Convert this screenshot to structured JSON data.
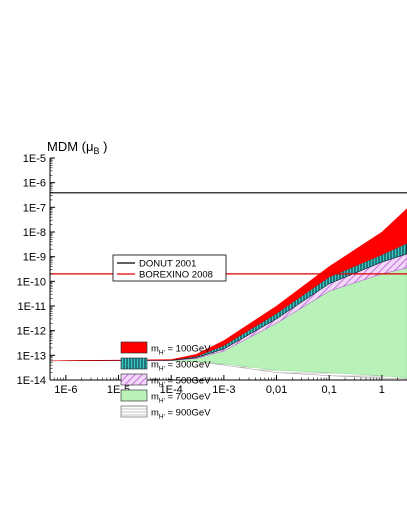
{
  "chart_data": {
    "type": "area",
    "title": "",
    "ylabel": "MDM (μ",
    "ylabel_sub": "B",
    "ylabel_tail": " )",
    "xlabel": "",
    "x_scale": "log",
    "y_scale": "log",
    "xlim": [
      5e-07,
      3
    ],
    "ylim": [
      1e-14,
      1e-05
    ],
    "x_ticks": [
      1e-06,
      1e-05,
      0.0001,
      0.001,
      0.01,
      0.1,
      1
    ],
    "x_tick_labels": [
      "1E-6",
      "1E-5",
      "1E-4",
      "1E-3",
      "0,01",
      "0,1",
      "1"
    ],
    "y_ticks": [
      1e-14,
      1e-13,
      1e-12,
      1e-11,
      1e-10,
      1e-09,
      1e-08,
      1e-07,
      1e-06,
      1e-05
    ],
    "y_tick_labels": [
      "1E-14",
      "1E-13",
      "1E-12",
      "1E-11",
      "1E-10",
      "1E-9",
      "1E-8",
      "1E-7",
      "1E-6",
      "1E-5"
    ],
    "grid": false,
    "reference_lines": [
      {
        "name": "DONUT 2001",
        "y": 3.9e-07,
        "color": "#000000"
      },
      {
        "name": "BOREXINO 2008",
        "y": 2e-10,
        "color": "#e00000"
      }
    ],
    "bands": [
      {
        "name": "900GeV",
        "color": "#ffffff",
        "hatch": "horizontal",
        "stroke": "#9a9a9a",
        "x": [
          5e-07,
          0.0001,
          0.0003,
          0.001,
          0.01,
          0.1,
          1,
          3
        ],
        "lower": [
          6e-14,
          6e-14,
          5.5e-14,
          4e-14,
          2e-14,
          1.5e-14,
          1.2e-14,
          1.1e-14
        ],
        "upper": [
          6e-14,
          6.1e-14,
          7e-14,
          1.3e-13,
          1.3e-12,
          2e-11,
          1e-10,
          1.8e-10
        ]
      },
      {
        "name": "700GeV",
        "color": "#b8f2b8",
        "hatch": "none",
        "stroke": "#7fd37f",
        "x": [
          5e-07,
          0.0001,
          0.0003,
          0.001,
          0.01,
          0.1,
          1,
          3
        ],
        "lower": [
          6e-14,
          6e-14,
          5.6e-14,
          4.5e-14,
          2.5e-14,
          2e-14,
          1.5e-14,
          1.2e-14
        ],
        "upper": [
          6e-14,
          6.2e-14,
          7.5e-14,
          1.5e-13,
          2e-12,
          4e-11,
          2e-10,
          3.5e-10
        ]
      },
      {
        "name": "500GeV",
        "color": "#ffffff",
        "hatch": "diagonal",
        "stroke": "#b04ad0",
        "x": [
          5e-07,
          0.0001,
          0.0003,
          0.001,
          0.01,
          0.1,
          1,
          3
        ],
        "lower": [
          6e-14,
          6.2e-14,
          7.5e-14,
          1.5e-13,
          2e-12,
          4e-11,
          2e-10,
          3.5e-10
        ],
        "upper": [
          6e-14,
          6.3e-14,
          8e-14,
          1.8e-13,
          3e-12,
          8e-11,
          6e-10,
          1.3e-09
        ]
      },
      {
        "name": "300GeV",
        "color": "#39c8c8",
        "hatch": "vertical",
        "stroke": "#000000",
        "x": [
          5e-07,
          0.0001,
          0.0003,
          0.001,
          0.01,
          0.1,
          1,
          3
        ],
        "lower": [
          6e-14,
          6.3e-14,
          8e-14,
          1.8e-13,
          3e-12,
          8e-11,
          6e-10,
          1.3e-09
        ],
        "upper": [
          6e-14,
          6.5e-14,
          9e-14,
          2.5e-13,
          5e-12,
          1.5e-10,
          1.2e-09,
          3.5e-09
        ]
      },
      {
        "name": "100GeV",
        "color": "#ff0000",
        "hatch": "none",
        "stroke": "#ff0000",
        "x": [
          5e-07,
          0.0001,
          0.0003,
          0.001,
          0.01,
          0.1,
          1,
          3
        ],
        "lower": [
          6e-14,
          6.5e-14,
          9e-14,
          2.5e-13,
          5e-12,
          1.5e-10,
          1.2e-09,
          3.5e-09
        ],
        "upper": [
          6e-14,
          6.8e-14,
          1.1e-13,
          4e-13,
          1e-11,
          4e-10,
          1e-08,
          9e-08
        ]
      }
    ],
    "legend_lines": [
      {
        "label": "DONUT 2001",
        "color": "#000000"
      },
      {
        "label": "BOREXINO 2008",
        "color": "#e00000"
      }
    ],
    "legend_bands": [
      {
        "prefix": "m",
        "sub": "H'",
        "suffix": " = 100GeV",
        "swatch": "#ff0000",
        "hatch": "none"
      },
      {
        "prefix": "m",
        "sub": "H'",
        "suffix": " = 300GeV",
        "swatch": "#39c8c8",
        "hatch": "vertical"
      },
      {
        "prefix": "m",
        "sub": "H'",
        "suffix": " = 500GeV",
        "swatch": "#e8b8f0",
        "hatch": "diagonal"
      },
      {
        "prefix": "m",
        "sub": "H'",
        "suffix": " = 700GeV",
        "swatch": "#b8f2b8",
        "hatch": "none"
      },
      {
        "prefix": "m",
        "sub": "H'",
        "suffix": " = 900GeV",
        "swatch": "#ffffff",
        "hatch": "horizontal"
      }
    ]
  }
}
